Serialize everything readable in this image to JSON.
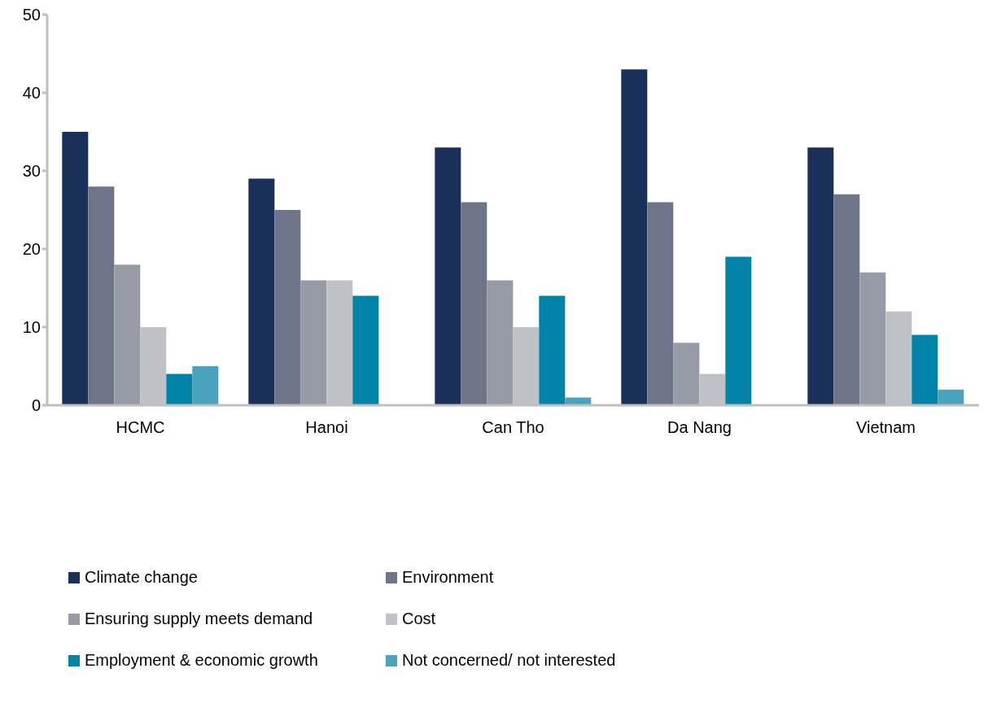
{
  "chart_data": {
    "type": "bar",
    "categories": [
      "HCMC",
      "Hanoi",
      "Can Tho",
      "Da Nang",
      "Vietnam"
    ],
    "series": [
      {
        "name": "Climate change",
        "color": "#1b2f5b",
        "values": [
          35,
          29,
          33,
          43,
          33
        ]
      },
      {
        "name": "Environment",
        "color": "#6e7489",
        "values": [
          28,
          25,
          26,
          26,
          27
        ]
      },
      {
        "name": "Ensuring supply meets demand",
        "color": "#979ba6",
        "values": [
          18,
          16,
          16,
          8,
          17
        ]
      },
      {
        "name": "Cost",
        "color": "#c0c1c6",
        "values": [
          10,
          16,
          10,
          4,
          12
        ]
      },
      {
        "name": "Employment & economic growth",
        "color": "#0083a7",
        "values": [
          4,
          14,
          14,
          19,
          9
        ]
      },
      {
        "name": "Not concerned/ not interested",
        "color": "#4aa3bd",
        "values": [
          5,
          null,
          1,
          null,
          2
        ]
      }
    ],
    "ylim": [
      0,
      50
    ],
    "yticks": [
      0,
      10,
      20,
      30,
      40,
      50
    ],
    "grid": false,
    "legend": "bottom"
  }
}
